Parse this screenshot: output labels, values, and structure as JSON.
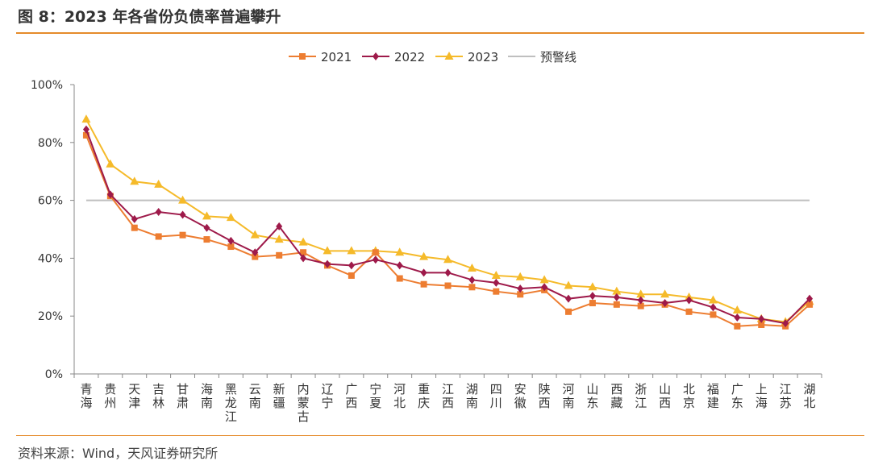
{
  "header": {
    "title": "图 8：2023 年各省份负债率普遍攀升"
  },
  "footer": {
    "source": "资料来源：Wind，天风证券研究所"
  },
  "chart_data": {
    "type": "line",
    "title": "",
    "xlabel": "",
    "ylabel": "",
    "ylim": [
      0,
      100
    ],
    "y_ticks": [
      "0%",
      "20%",
      "40%",
      "60%",
      "80%",
      "100%"
    ],
    "categories": [
      "青海",
      "贵州",
      "天津",
      "吉林",
      "甘肃",
      "海南",
      "黑龙江",
      "云南",
      "新疆",
      "内蒙古",
      "辽宁",
      "广西",
      "宁夏",
      "河北",
      "重庆",
      "江西",
      "湖南",
      "四川",
      "安徽",
      "陕西",
      "河南",
      "山东",
      "西藏",
      "浙江",
      "山西",
      "北京",
      "福建",
      "广东",
      "上海",
      "江苏",
      "湖北"
    ],
    "series": [
      {
        "name": "2021",
        "color": "#ED7D31",
        "marker": "square",
        "values": [
          82.5,
          61.5,
          50.5,
          47.5,
          48,
          46.5,
          44,
          40.5,
          41,
          42,
          37.5,
          34,
          42,
          33,
          31,
          30.5,
          30,
          28.5,
          27.5,
          29,
          21.5,
          24.5,
          24,
          23.5,
          24,
          21.5,
          20.5,
          16.5,
          17,
          16.5,
          24
        ]
      },
      {
        "name": "2022",
        "color": "#9E1A4A",
        "marker": "diamond",
        "values": [
          84.5,
          62,
          53.5,
          56,
          55,
          50.5,
          46,
          42,
          51,
          40,
          38,
          37.5,
          39.5,
          37.5,
          35,
          35,
          32.5,
          31.5,
          29.5,
          30,
          26,
          27,
          26.5,
          25.5,
          24.5,
          25.5,
          23,
          19.5,
          19,
          17.5,
          26
        ]
      },
      {
        "name": "2023",
        "color": "#F5BA2A",
        "marker": "triangle",
        "values": [
          88,
          72.5,
          66.5,
          65.5,
          60,
          54.5,
          54,
          48,
          46.5,
          45.5,
          42.5,
          42.5,
          42.5,
          42,
          40.5,
          39.5,
          36.5,
          34,
          33.5,
          32.5,
          30.5,
          30,
          28.5,
          27.5,
          27.5,
          26.5,
          25.5,
          22,
          19,
          18,
          25
        ]
      }
    ],
    "reference_line": {
      "name": "预警线",
      "value": 60,
      "color": "#BFBFBF"
    },
    "legend_position": "top",
    "grid": false
  }
}
